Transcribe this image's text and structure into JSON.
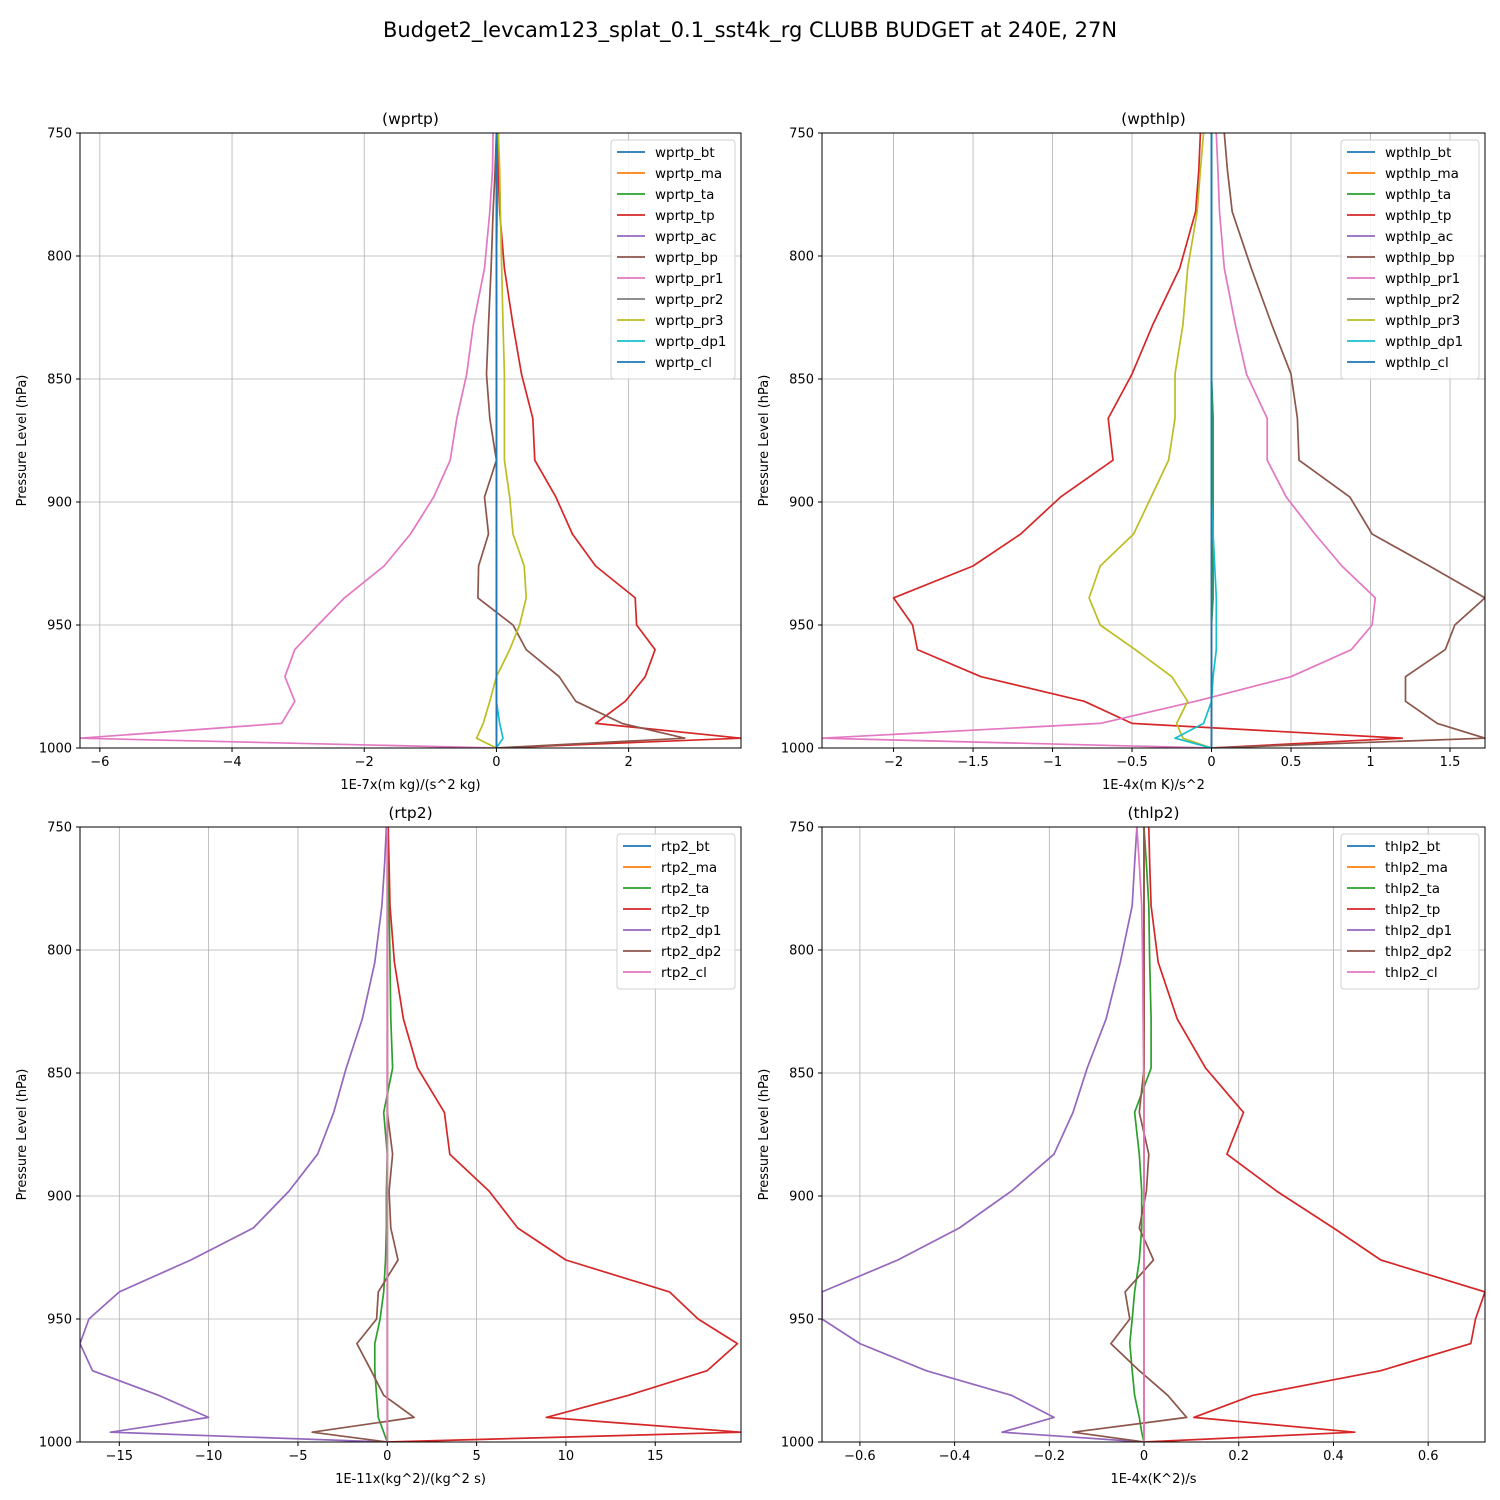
{
  "suptitle": "Budget2_levcam123_splat_0.1_sst4k_rg CLUBB BUDGET at 240E, 27N",
  "chart_data": [
    {
      "type": "line",
      "title": "(wprtp)",
      "xlabel": "1E-7x(m kg)/(s^2 kg)",
      "ylabel": "Pressure Level (hPa)",
      "xlim": [
        -6.3,
        3.7
      ],
      "ylim": [
        1000,
        750
      ],
      "xticks": [
        -6,
        -4,
        -2,
        0,
        2
      ],
      "yticks": [
        750,
        800,
        850,
        900,
        950,
        1000
      ],
      "grid": true,
      "legend": "top-right",
      "pressure": [
        750,
        765,
        782,
        805,
        828,
        848,
        866,
        883,
        898,
        913,
        926,
        939,
        950,
        960,
        971,
        981,
        990,
        996,
        1000
      ],
      "series": [
        {
          "name": "wprtp_bt",
          "color": "#1f77b4",
          "values": [
            0,
            0,
            0,
            0,
            0,
            0,
            0,
            0,
            0,
            0,
            0,
            0,
            0,
            0,
            0,
            0,
            0,
            0,
            0
          ]
        },
        {
          "name": "wprtp_ma",
          "color": "#ff7f0e",
          "values": [
            0,
            0,
            0,
            0,
            0,
            0,
            0,
            0,
            0,
            0,
            0,
            0,
            0,
            0,
            0,
            0,
            0,
            0,
            0
          ]
        },
        {
          "name": "wprtp_ta",
          "color": "#2ca02c",
          "values": [
            0.03,
            0.02,
            0.01,
            0,
            0,
            0,
            0,
            0,
            0,
            0,
            0,
            0,
            0,
            0,
            0,
            0,
            0,
            0,
            0
          ]
        },
        {
          "name": "wprtp_tp",
          "color": "#d62728",
          "values": [
            0.02,
            0.03,
            0.05,
            0.12,
            0.25,
            0.38,
            0.55,
            0.58,
            0.9,
            1.15,
            1.5,
            2.1,
            2.12,
            2.4,
            2.25,
            1.95,
            1.5,
            3.7,
            0
          ]
        },
        {
          "name": "wprtp_ac",
          "color": "#9467bd",
          "values": [
            0,
            0,
            0,
            0,
            0,
            0,
            0,
            0,
            0,
            0,
            0,
            0,
            0,
            0,
            0,
            0,
            0,
            0,
            0
          ]
        },
        {
          "name": "wprtp_bp",
          "color": "#8c564b",
          "values": [
            0,
            -0.02,
            -0.05,
            -0.08,
            -0.12,
            -0.15,
            -0.1,
            0,
            -0.18,
            -0.12,
            -0.27,
            -0.28,
            0.25,
            0.45,
            0.95,
            1.2,
            1.9,
            2.85,
            0
          ]
        },
        {
          "name": "wprtp_pr1",
          "color": "#e377c2",
          "values": [
            -0.05,
            -0.06,
            -0.1,
            -0.18,
            -0.35,
            -0.45,
            -0.6,
            -0.7,
            -0.95,
            -1.3,
            -1.7,
            -2.3,
            -2.7,
            -3.05,
            -3.2,
            -3.05,
            -3.25,
            -6.3,
            0
          ]
        },
        {
          "name": "wprtp_pr2",
          "color": "#7f7f7f",
          "values": [
            0,
            0,
            0,
            0,
            0,
            0,
            0,
            0,
            0,
            0,
            0,
            0,
            0,
            0,
            0,
            0,
            0,
            0,
            0
          ]
        },
        {
          "name": "wprtp_pr3",
          "color": "#bcbd22",
          "values": [
            0.03,
            0.05,
            0.06,
            0.08,
            0.1,
            0.12,
            0.12,
            0.12,
            0.2,
            0.25,
            0.42,
            0.45,
            0.35,
            0.2,
            0,
            -0.1,
            -0.2,
            -0.3,
            0
          ]
        },
        {
          "name": "wprtp_dp1",
          "color": "#17becf",
          "values": [
            0,
            0,
            0,
            0,
            0,
            0,
            0,
            0,
            0,
            0,
            0,
            0,
            0,
            0,
            0,
            0,
            0.05,
            0.1,
            0
          ]
        },
        {
          "name": "wprtp_cl",
          "color": "#1f77b4",
          "values": [
            0,
            0,
            0,
            0,
            0,
            0,
            0,
            0,
            0,
            0,
            0,
            0,
            0,
            0,
            0,
            0,
            0,
            0,
            0
          ]
        }
      ]
    },
    {
      "type": "line",
      "title": "(wpthlp)",
      "xlabel": "1E-4x(m K)/s^2",
      "ylabel": "Pressure Level (hPa)",
      "xlim": [
        -2.45,
        1.72
      ],
      "ylim": [
        1000,
        750
      ],
      "xticks": [
        -2.0,
        -1.5,
        -1.0,
        -0.5,
        0.0,
        0.5,
        1.0,
        1.5
      ],
      "yticks": [
        750,
        800,
        850,
        900,
        950,
        1000
      ],
      "grid": true,
      "legend": "top-right",
      "pressure": [
        750,
        765,
        782,
        805,
        828,
        848,
        866,
        883,
        898,
        913,
        926,
        939,
        950,
        960,
        971,
        981,
        990,
        996,
        1000
      ],
      "series": [
        {
          "name": "wpthlp_bt",
          "color": "#1f77b4",
          "values": [
            0,
            0,
            0,
            0,
            0,
            0,
            0,
            0,
            0,
            0,
            0,
            0,
            0,
            0,
            0,
            0,
            0,
            0,
            0
          ]
        },
        {
          "name": "wpthlp_ma",
          "color": "#ff7f0e",
          "values": [
            0,
            0,
            0,
            0,
            0,
            0,
            0,
            0,
            0,
            0,
            0,
            0,
            0,
            0,
            0,
            0,
            0,
            0,
            0
          ]
        },
        {
          "name": "wpthlp_ta",
          "color": "#2ca02c",
          "values": [
            0,
            0,
            0,
            0,
            0,
            0,
            0.01,
            0.01,
            0.01,
            0.01,
            0.01,
            0.01,
            0,
            0,
            0,
            0,
            0,
            0,
            0
          ]
        },
        {
          "name": "wpthlp_tp",
          "color": "#d62728",
          "values": [
            -0.07,
            -0.08,
            -0.1,
            -0.2,
            -0.37,
            -0.5,
            -0.65,
            -0.62,
            -0.95,
            -1.2,
            -1.5,
            -2.0,
            -1.88,
            -1.85,
            -1.45,
            -0.8,
            -0.5,
            1.2,
            0
          ]
        },
        {
          "name": "wpthlp_ac",
          "color": "#9467bd",
          "values": [
            0,
            0,
            0,
            0,
            0,
            0,
            0,
            0,
            0,
            0,
            0,
            0,
            0,
            0,
            0,
            0,
            0,
            0,
            0
          ]
        },
        {
          "name": "wpthlp_bp",
          "color": "#8c564b",
          "values": [
            0.08,
            0.1,
            0.13,
            0.25,
            0.38,
            0.5,
            0.54,
            0.55,
            0.87,
            1.01,
            1.37,
            1.72,
            1.53,
            1.47,
            1.22,
            1.22,
            1.42,
            1.72,
            0
          ]
        },
        {
          "name": "wpthlp_pr1",
          "color": "#e377c2",
          "values": [
            0.03,
            0.04,
            0.05,
            0.08,
            0.15,
            0.22,
            0.35,
            0.35,
            0.47,
            0.65,
            0.82,
            1.03,
            1.01,
            0.88,
            0.5,
            -0.1,
            -0.7,
            -2.45,
            0
          ]
        },
        {
          "name": "wpthlp_pr2",
          "color": "#7f7f7f",
          "values": [
            0,
            0,
            0,
            0,
            0,
            0,
            0,
            0,
            0,
            0,
            0,
            0,
            0,
            0,
            0,
            0,
            0,
            0,
            0
          ]
        },
        {
          "name": "wpthlp_pr3",
          "color": "#bcbd22",
          "values": [
            -0.05,
            -0.07,
            -0.09,
            -0.15,
            -0.18,
            -0.23,
            -0.23,
            -0.27,
            -0.38,
            -0.49,
            -0.7,
            -0.77,
            -0.7,
            -0.48,
            -0.25,
            -0.15,
            -0.22,
            -0.18,
            0
          ]
        },
        {
          "name": "wpthlp_dp1",
          "color": "#17becf",
          "values": [
            0,
            0,
            0,
            0,
            0,
            0,
            0,
            0,
            0,
            0.01,
            0.02,
            0.03,
            0.03,
            0.03,
            0.01,
            0,
            -0.05,
            -0.23,
            0
          ]
        },
        {
          "name": "wpthlp_cl",
          "color": "#1f77b4",
          "values": [
            0,
            0,
            0,
            0,
            0,
            0,
            0,
            0,
            0,
            0,
            0,
            0,
            0,
            0,
            0,
            0,
            0,
            0,
            0
          ]
        }
      ]
    },
    {
      "type": "line",
      "title": "(rtp2)",
      "xlabel": "1E-11x(kg^2)/(kg^2 s)",
      "ylabel": "Pressure Level (hPa)",
      "xlim": [
        -17.2,
        19.8
      ],
      "ylim": [
        1000,
        750
      ],
      "xticks": [
        -15,
        -10,
        -5,
        0,
        5,
        10,
        15
      ],
      "yticks": [
        750,
        800,
        850,
        900,
        950,
        1000
      ],
      "grid": true,
      "legend": "top-right",
      "pressure": [
        750,
        765,
        782,
        805,
        828,
        848,
        866,
        883,
        898,
        913,
        926,
        939,
        950,
        960,
        971,
        981,
        990,
        996,
        1000
      ],
      "series": [
        {
          "name": "rtp2_bt",
          "color": "#1f77b4",
          "values": [
            0,
            0,
            0,
            0,
            0,
            0,
            0,
            0,
            0,
            0,
            0,
            0,
            0,
            0,
            0,
            0,
            0,
            0,
            0
          ]
        },
        {
          "name": "rtp2_ma",
          "color": "#ff7f0e",
          "values": [
            0,
            0,
            0,
            0,
            0,
            0,
            0,
            0,
            0,
            0,
            0,
            0,
            0,
            0,
            0,
            0,
            0,
            0,
            0
          ]
        },
        {
          "name": "rtp2_ta",
          "color": "#2ca02c",
          "values": [
            0,
            0.05,
            0.1,
            0.15,
            0.2,
            0.3,
            -0.2,
            0,
            -0.05,
            -0.05,
            -0.1,
            -0.2,
            -0.4,
            -0.7,
            -0.7,
            -0.6,
            -0.5,
            -0.2,
            0
          ]
        },
        {
          "name": "rtp2_tp",
          "color": "#d62728",
          "values": [
            0.05,
            0.1,
            0.15,
            0.4,
            0.9,
            1.7,
            3.2,
            3.5,
            5.7,
            7.3,
            10.0,
            15.8,
            17.4,
            19.6,
            17.9,
            13.5,
            8.9,
            19.8,
            0
          ]
        },
        {
          "name": "rtp2_dp1",
          "color": "#9467bd",
          "values": [
            -0.05,
            -0.15,
            -0.3,
            -0.7,
            -1.4,
            -2.3,
            -3.0,
            -3.9,
            -5.5,
            -7.5,
            -11.0,
            -15.0,
            -16.7,
            -17.2,
            -16.5,
            -12.8,
            -10.0,
            -15.5,
            0
          ]
        },
        {
          "name": "rtp2_dp2",
          "color": "#8c564b",
          "values": [
            0,
            0,
            0,
            0,
            0,
            0,
            0,
            0.3,
            0.1,
            0.2,
            0.6,
            -0.5,
            -0.6,
            -1.7,
            -0.9,
            -0.2,
            1.5,
            -4.2,
            0
          ]
        },
        {
          "name": "rtp2_cl",
          "color": "#e377c2",
          "values": [
            0,
            0,
            0,
            0,
            0,
            0,
            0,
            0,
            0,
            0,
            0,
            0,
            0,
            0,
            0,
            0,
            0,
            0,
            0
          ]
        }
      ]
    },
    {
      "type": "line",
      "title": "(thlp2)",
      "xlabel": "1E-4x(K^2)/s",
      "ylabel": "Pressure Level (hPa)",
      "xlim": [
        -0.68,
        0.72
      ],
      "ylim": [
        1000,
        750
      ],
      "xticks": [
        -0.6,
        -0.4,
        -0.2,
        0.0,
        0.2,
        0.4,
        0.6
      ],
      "yticks": [
        750,
        800,
        850,
        900,
        950,
        1000
      ],
      "grid": true,
      "legend": "top-right",
      "pressure": [
        750,
        765,
        782,
        805,
        828,
        848,
        866,
        883,
        898,
        913,
        926,
        939,
        950,
        960,
        971,
        981,
        990,
        996,
        1000
      ],
      "series": [
        {
          "name": "thlp2_bt",
          "color": "#1f77b4",
          "values": [
            0,
            0,
            0,
            0,
            0,
            0,
            0,
            0,
            0,
            0,
            0,
            0,
            0,
            0,
            0,
            0,
            0,
            0,
            0
          ]
        },
        {
          "name": "thlp2_ma",
          "color": "#ff7f0e",
          "values": [
            0,
            0,
            0,
            0,
            0,
            0,
            0,
            0,
            0,
            0,
            0,
            0,
            0,
            0,
            0,
            0,
            0,
            0,
            0
          ]
        },
        {
          "name": "thlp2_ta",
          "color": "#2ca02c",
          "values": [
            0,
            0.005,
            0.01,
            0.012,
            0.015,
            0.015,
            -0.02,
            -0.01,
            -0.005,
            -0.005,
            -0.01,
            -0.02,
            -0.025,
            -0.03,
            -0.025,
            -0.02,
            -0.01,
            -0.005,
            0
          ]
        },
        {
          "name": "thlp2_tp",
          "color": "#d62728",
          "values": [
            0.01,
            0.012,
            0.015,
            0.03,
            0.07,
            0.13,
            0.21,
            0.175,
            0.28,
            0.4,
            0.5,
            0.72,
            0.7,
            0.69,
            0.5,
            0.23,
            0.105,
            0.445,
            0
          ]
        },
        {
          "name": "thlp2_dp1",
          "color": "#9467bd",
          "values": [
            -0.015,
            -0.02,
            -0.025,
            -0.05,
            -0.08,
            -0.12,
            -0.15,
            -0.19,
            -0.28,
            -0.39,
            -0.52,
            -0.68,
            -0.68,
            -0.6,
            -0.46,
            -0.28,
            -0.19,
            -0.3,
            0
          ]
        },
        {
          "name": "thlp2_dp2",
          "color": "#8c564b",
          "values": [
            0,
            0,
            0,
            0,
            0,
            0,
            -0.01,
            0.01,
            0.005,
            -0.01,
            0.02,
            -0.04,
            -0.03,
            -0.07,
            -0.01,
            0.05,
            0.09,
            -0.15,
            0
          ]
        },
        {
          "name": "thlp2_cl",
          "color": "#e377c2",
          "values": [
            -0.015,
            -0.01,
            -0.005,
            -0.003,
            -0.002,
            -0.001,
            0,
            0,
            0,
            0,
            0,
            0,
            0,
            0,
            0,
            0,
            0,
            0,
            0
          ]
        }
      ]
    }
  ]
}
